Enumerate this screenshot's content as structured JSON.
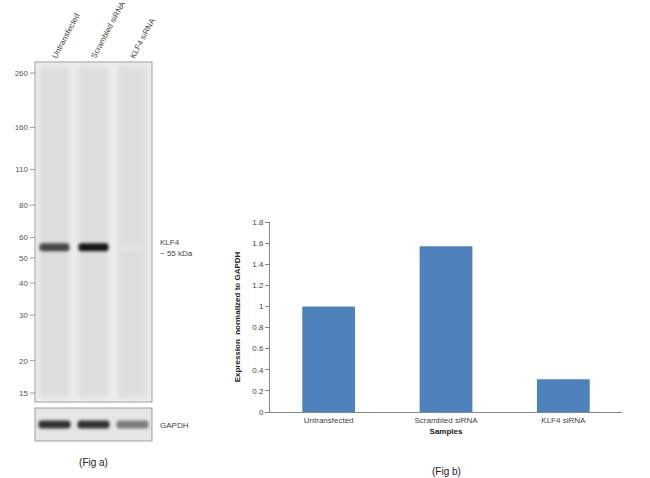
{
  "blot": {
    "lanes": [
      "Untransfected",
      "Scrambled siRNA",
      "KLF4 siRNA"
    ],
    "markers": [
      260,
      160,
      110,
      80,
      60,
      50,
      40,
      30,
      20,
      15
    ],
    "band_label": "KLF4",
    "band_size_label": "~ 55 kDa",
    "band_kda": 55,
    "band_intensity": [
      0.8,
      1.0,
      0.12
    ],
    "loading_control": "GAPDH",
    "loading_intensity": [
      0.85,
      0.85,
      0.55
    ],
    "caption": "(Fig a)"
  },
  "chart_data": {
    "type": "bar",
    "categories": [
      "Untransfected",
      "Scrambled siRNA",
      "KLF4 siRNA"
    ],
    "values": [
      1.0,
      1.57,
      0.31
    ],
    "color": "#4f81bd",
    "xlabel": "Samples",
    "ylabel": "Expression  normalized to GAPDH",
    "ylim": [
      0,
      1.8
    ],
    "yticks": [
      0,
      0.2,
      0.4,
      0.6,
      0.8,
      1,
      1.2,
      1.4,
      1.6,
      1.8
    ],
    "grid": false,
    "caption": "(Fig b)"
  }
}
